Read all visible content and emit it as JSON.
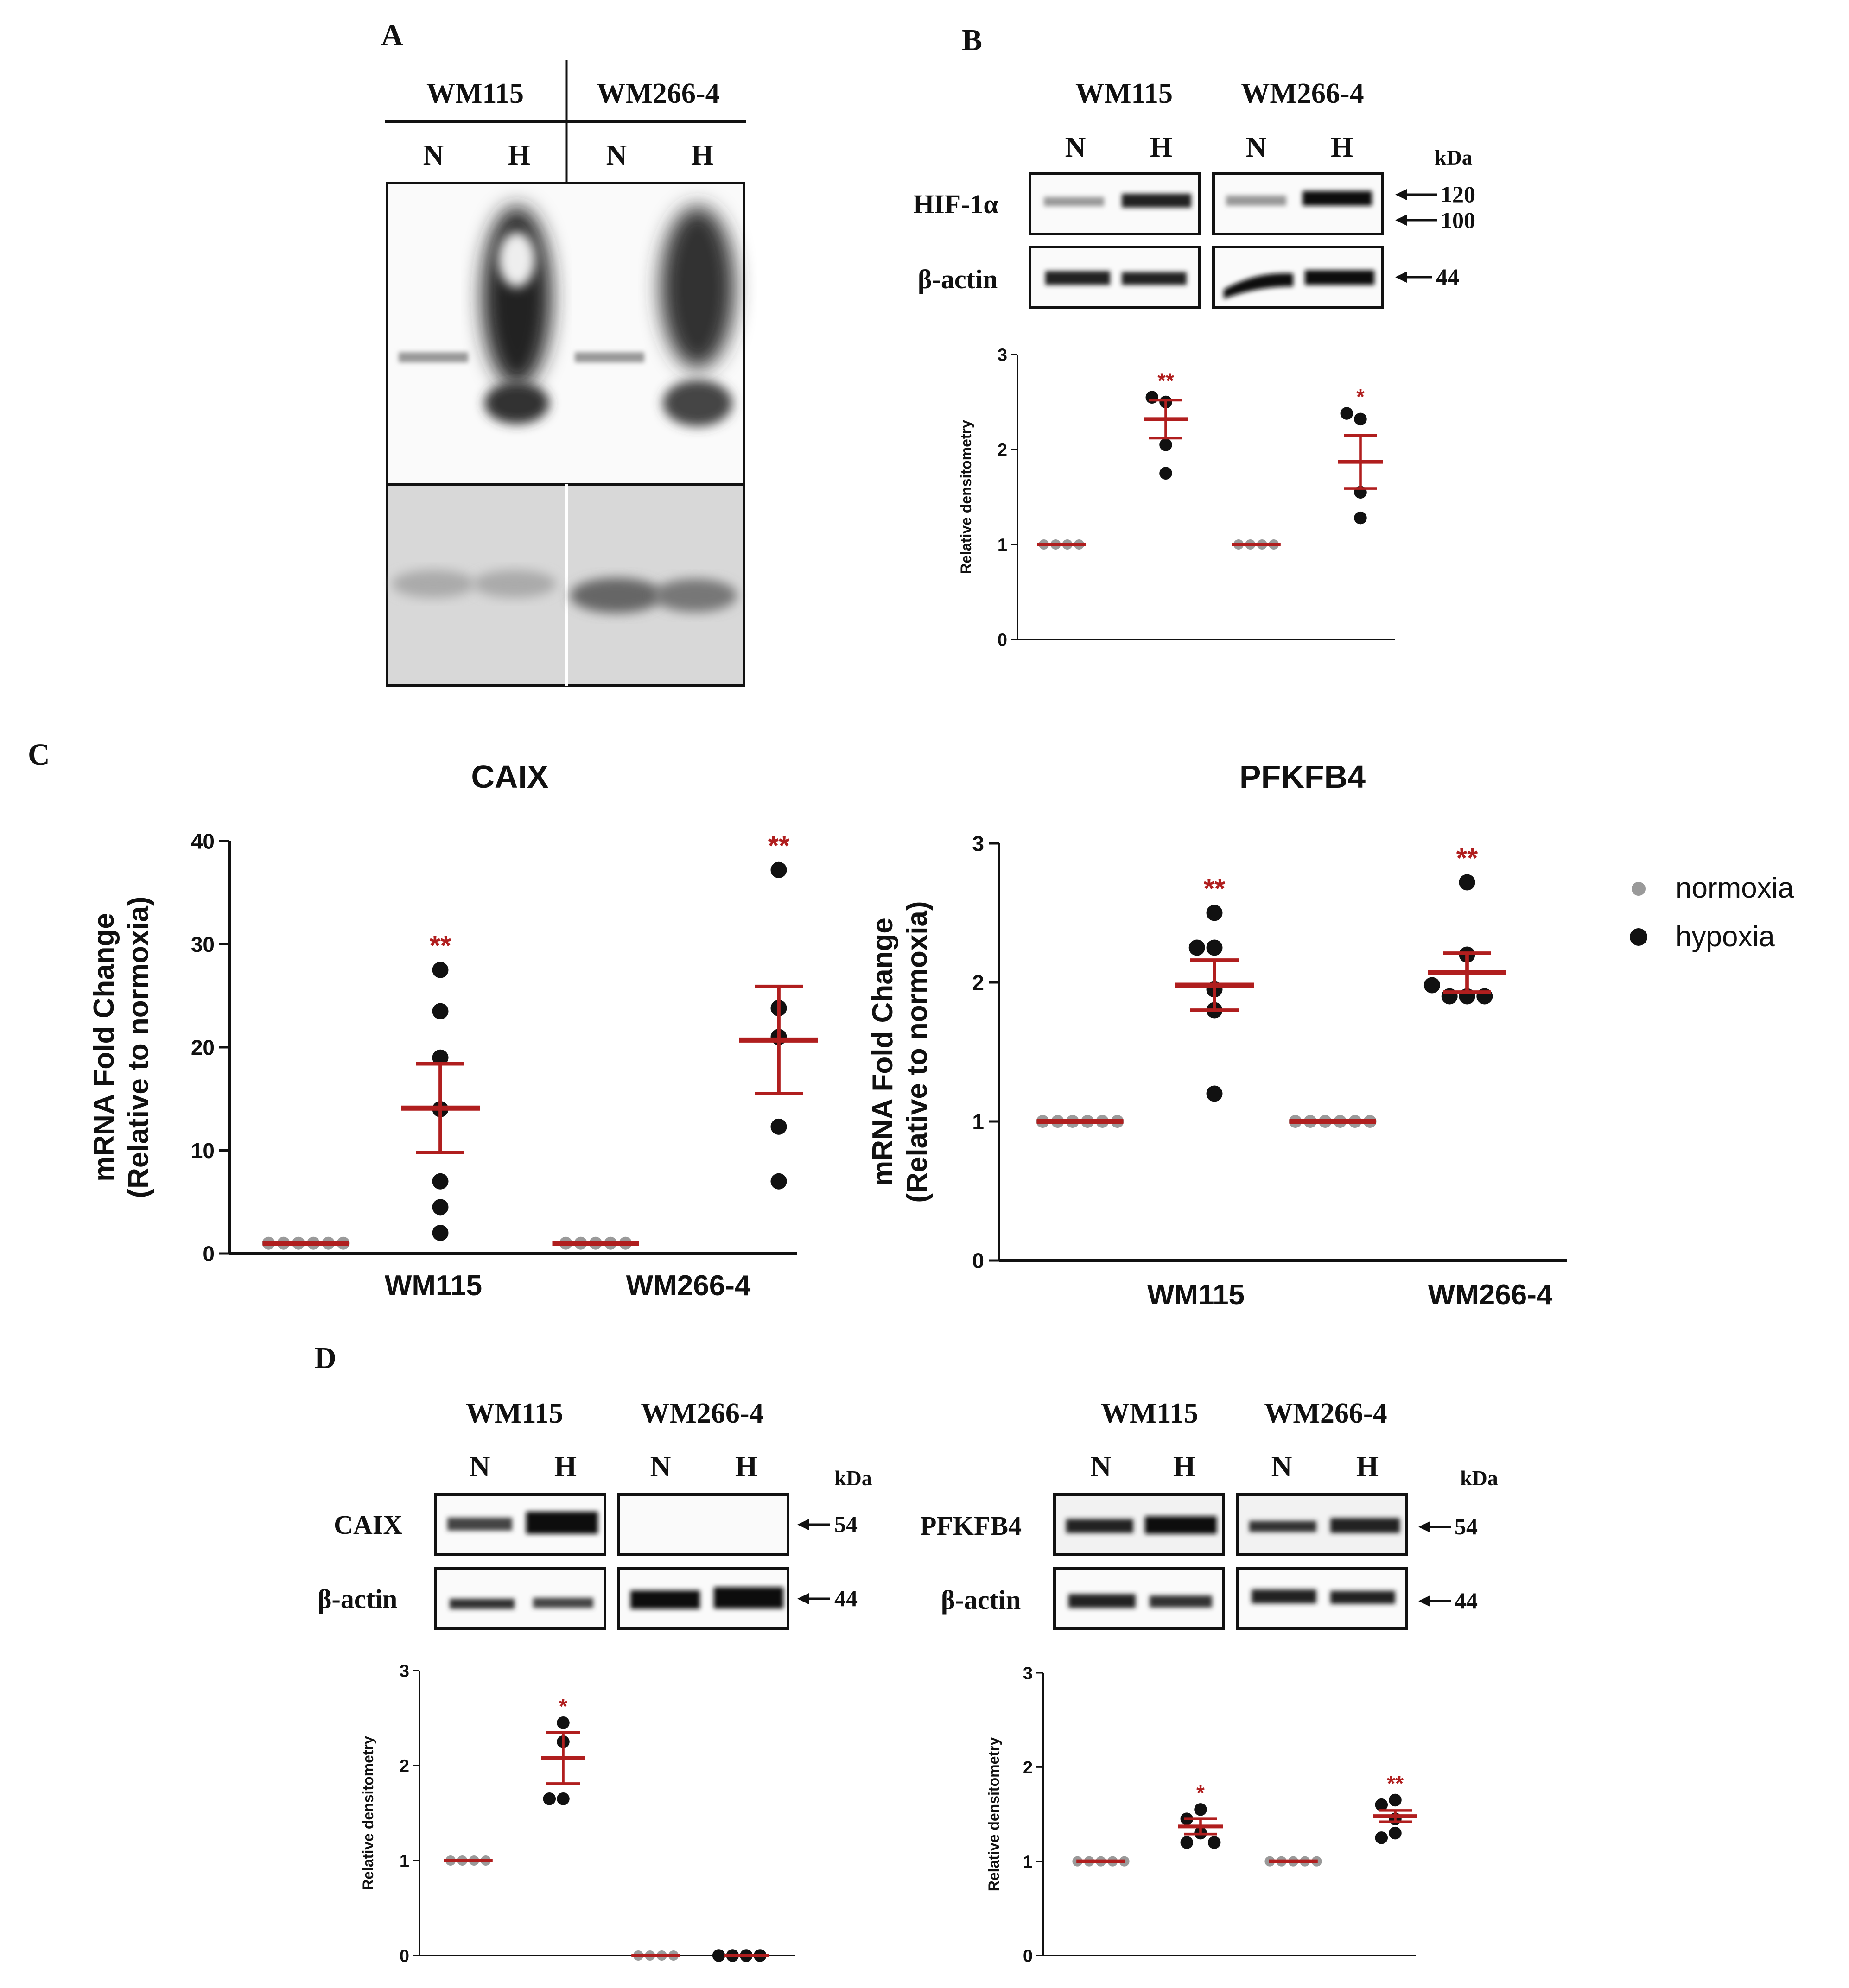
{
  "colors": {
    "mean_line": "#b01e1e",
    "hypoxia": "#111111",
    "normoxia": "#9a9a9a",
    "significance": "#b01e1e"
  },
  "panels": {
    "A": {
      "letter": "A",
      "cell_lines": [
        "WM115",
        "WM266-4"
      ],
      "conditions": [
        "N",
        "H",
        "N",
        "H"
      ]
    },
    "B": {
      "letter": "B",
      "cell_lines": [
        "WM115",
        "WM266-4"
      ],
      "conditions": [
        "N",
        "H",
        "N",
        "H"
      ],
      "kda_label": "kDa",
      "proteins": [
        "HIF-1α",
        "β-actin"
      ],
      "markers": [
        "120",
        "100",
        "44"
      ]
    },
    "C": {
      "letter": "C"
    },
    "D": {
      "letter": "D",
      "left": {
        "cell_lines": [
          "WM115",
          "WM266-4"
        ],
        "conditions": [
          "N",
          "H",
          "N",
          "H"
        ],
        "kda_label": "kDa",
        "proteins": [
          "CAIX",
          "β-actin"
        ],
        "markers": [
          "54",
          "44"
        ]
      },
      "right": {
        "cell_lines": [
          "WM115",
          "WM266-4"
        ],
        "conditions": [
          "N",
          "H",
          "N",
          "H"
        ],
        "kda_label": "kDa",
        "proteins": [
          "PFKFB4",
          "β-actin"
        ],
        "markers": [
          "54",
          "44"
        ]
      }
    }
  },
  "legend": {
    "entries": [
      {
        "label": "normoxia",
        "color_key": "normoxia"
      },
      {
        "label": "hypoxia",
        "color_key": "hypoxia"
      }
    ]
  },
  "chart_data": [
    {
      "id": "B-densitometry",
      "type": "scatter",
      "title": "",
      "ylabel": "Relative densitometry",
      "ylim": [
        0,
        3
      ],
      "yticks": [
        "0",
        "1",
        "2",
        "3"
      ],
      "groups": [
        {
          "name": "WM115 N",
          "condition": "normoxia",
          "points": [
            1,
            1,
            1,
            1
          ],
          "mean": 1.0,
          "sem": 0.0,
          "sig": ""
        },
        {
          "name": "WM115 H",
          "condition": "hypoxia",
          "points": [
            2.5,
            2.55,
            2.05,
            1.75
          ],
          "mean": 2.32,
          "sem": 0.2,
          "sig": "**"
        },
        {
          "name": "WM266-4 N",
          "condition": "normoxia",
          "points": [
            1,
            1,
            1,
            1
          ],
          "mean": 1.0,
          "sem": 0.0,
          "sig": ""
        },
        {
          "name": "WM266-4 H",
          "condition": "hypoxia",
          "points": [
            2.32,
            2.38,
            1.55,
            1.28
          ],
          "mean": 1.87,
          "sem": 0.28,
          "sig": "*"
        }
      ]
    },
    {
      "id": "C-CAIX",
      "type": "scatter",
      "title": "CAIX",
      "ylabel": "mRNA Fold Change\n(Relative to normoxia)",
      "ylabel_lines": [
        "mRNA Fold Change",
        "(Relative to normoxia)"
      ],
      "ylim": [
        0,
        40
      ],
      "yticks": [
        "0",
        "10",
        "20",
        "30",
        "40"
      ],
      "categories": [
        "WM115",
        "WM266-4"
      ],
      "groups": [
        {
          "name": "WM115 N",
          "condition": "normoxia",
          "points": [
            1,
            1,
            1,
            1,
            1,
            1
          ],
          "mean": 1.0,
          "sem": 0.0,
          "sig": ""
        },
        {
          "name": "WM115 H",
          "condition": "hypoxia",
          "points": [
            27.5,
            23.5,
            19,
            14,
            7,
            4.5,
            2
          ],
          "mean": 14.1,
          "sem": 4.3,
          "sig": "**"
        },
        {
          "name": "WM266-4 N",
          "condition": "normoxia",
          "points": [
            1,
            1,
            1,
            1,
            1
          ],
          "mean": 1.0,
          "sem": 0.0,
          "sig": ""
        },
        {
          "name": "WM266-4 H",
          "condition": "hypoxia",
          "points": [
            37.2,
            23.8,
            21,
            12.3,
            7
          ],
          "mean": 20.7,
          "sem": 5.2,
          "sig": "**"
        }
      ]
    },
    {
      "id": "C-PFKFB4",
      "type": "scatter",
      "title": "PFKFB4",
      "ylabel": "mRNA Fold Change\n(Relative to normoxia)",
      "ylabel_lines": [
        "mRNA Fold Change",
        "(Relative to normoxia)"
      ],
      "ylim": [
        0,
        3
      ],
      "yticks": [
        "0",
        "1",
        "2",
        "3"
      ],
      "categories": [
        "WM115",
        "WM266-4"
      ],
      "groups": [
        {
          "name": "WM115 N",
          "condition": "normoxia",
          "points": [
            1,
            1,
            1,
            1,
            1,
            1
          ],
          "mean": 1.0,
          "sem": 0.0,
          "sig": ""
        },
        {
          "name": "WM115 H",
          "condition": "hypoxia",
          "points": [
            2.5,
            2.25,
            2.25,
            1.95,
            1.8,
            1.2
          ],
          "mean": 1.98,
          "sem": 0.18,
          "sig": "**"
        },
        {
          "name": "WM266-4 N",
          "condition": "normoxia",
          "points": [
            1,
            1,
            1,
            1,
            1,
            1
          ],
          "mean": 1.0,
          "sem": 0.0,
          "sig": ""
        },
        {
          "name": "WM266-4 H",
          "condition": "hypoxia",
          "points": [
            2.72,
            2.2,
            1.9,
            1.9,
            1.9,
            1.98
          ],
          "mean": 2.07,
          "sem": 0.14,
          "sig": "**"
        }
      ]
    },
    {
      "id": "D-CAIX-densitometry",
      "type": "scatter",
      "title": "",
      "ylabel": "Relative densitometry",
      "ylim": [
        0,
        3
      ],
      "yticks": [
        "0",
        "1",
        "2",
        "3"
      ],
      "groups": [
        {
          "name": "WM115 N",
          "condition": "normoxia",
          "points": [
            1,
            1,
            1,
            1
          ],
          "mean": 1.0,
          "sem": 0.0,
          "sig": ""
        },
        {
          "name": "WM115 H",
          "condition": "hypoxia",
          "points": [
            2.45,
            2.25,
            1.65,
            1.65
          ],
          "mean": 2.08,
          "sem": 0.27,
          "sig": "*"
        },
        {
          "name": "WM266-4 N",
          "condition": "normoxia",
          "points": [
            0,
            0,
            0,
            0
          ],
          "mean": 0.0,
          "sem": 0.0,
          "sig": ""
        },
        {
          "name": "WM266-4 H",
          "condition": "hypoxia",
          "points": [
            0,
            0,
            0,
            0
          ],
          "mean": 0.0,
          "sem": 0.0,
          "sig": ""
        }
      ]
    },
    {
      "id": "D-PFKFB4-densitometry",
      "type": "scatter",
      "title": "",
      "ylabel": "Relative densitometry",
      "ylim": [
        0,
        3
      ],
      "yticks": [
        "0",
        "1",
        "2",
        "3"
      ],
      "groups": [
        {
          "name": "WM115 N",
          "condition": "normoxia",
          "points": [
            1,
            1,
            1,
            1,
            1
          ],
          "mean": 1.0,
          "sem": 0.0,
          "sig": ""
        },
        {
          "name": "WM115 H",
          "condition": "hypoxia",
          "points": [
            1.55,
            1.45,
            1.3,
            1.2,
            1.2
          ],
          "mean": 1.37,
          "sem": 0.08,
          "sig": "*"
        },
        {
          "name": "WM266-4 N",
          "condition": "normoxia",
          "points": [
            1,
            1,
            1,
            1,
            1
          ],
          "mean": 1.0,
          "sem": 0.0,
          "sig": ""
        },
        {
          "name": "WM266-4 H",
          "condition": "hypoxia",
          "points": [
            1.65,
            1.6,
            1.45,
            1.3,
            1.25
          ],
          "mean": 1.48,
          "sem": 0.06,
          "sig": "**"
        }
      ]
    }
  ]
}
